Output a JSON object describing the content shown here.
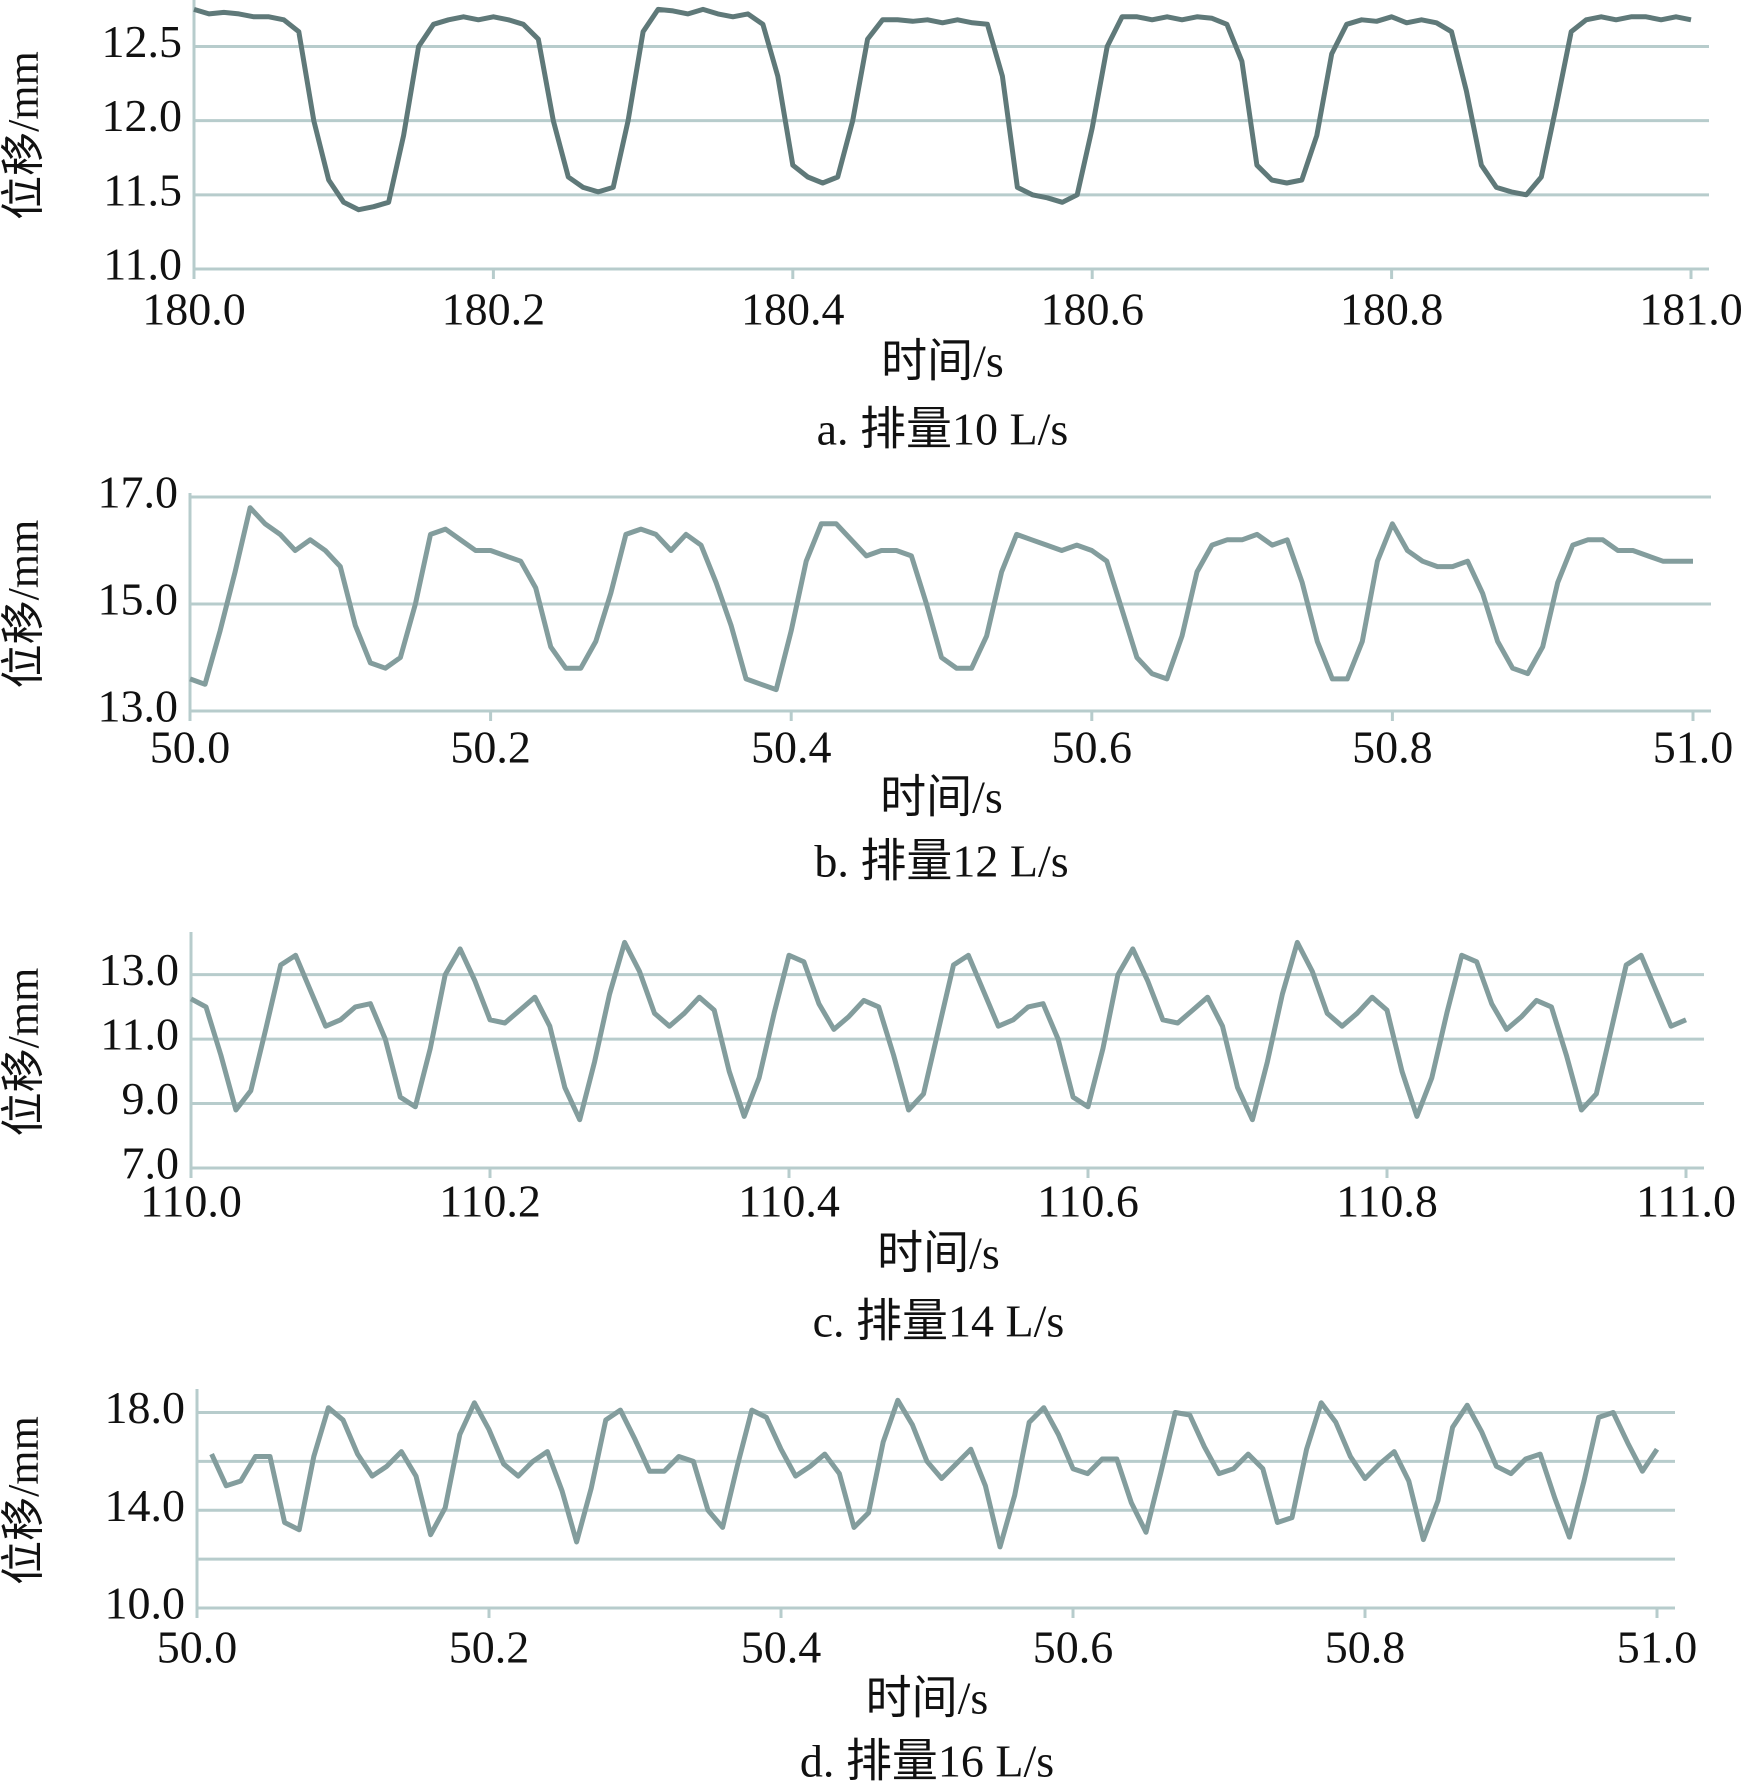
{
  "chart_data": [
    {
      "type": "line",
      "ylabel": "位移/mm",
      "xlabel": "时间/s",
      "caption": "a. 排量10 L/s",
      "x": [
        180,
        180.01,
        180.02,
        180.03,
        180.04,
        180.05,
        180.06,
        180.07,
        180.08,
        180.09,
        180.1,
        180.11,
        180.12,
        180.13,
        180.14,
        180.15,
        180.16,
        180.17,
        180.18,
        180.19,
        180.2,
        180.21,
        180.22,
        180.23,
        180.24,
        180.25,
        180.26,
        180.27,
        180.28,
        180.29,
        180.3,
        180.31,
        180.32,
        180.33,
        180.34,
        180.35,
        180.36,
        180.37,
        180.38,
        180.39,
        180.4,
        180.41,
        180.42,
        180.43,
        180.44,
        180.45,
        180.46,
        180.47,
        180.48,
        180.49,
        180.5,
        180.51,
        180.52,
        180.53,
        180.54,
        180.55,
        180.56,
        180.57,
        180.58,
        180.59,
        180.6,
        180.61,
        180.62,
        180.63,
        180.64,
        180.65,
        180.66,
        180.67,
        180.68,
        180.69,
        180.7,
        180.71,
        180.72,
        180.73,
        180.74,
        180.75,
        180.76,
        180.77,
        180.78,
        180.79,
        180.8,
        180.81,
        180.82,
        180.83,
        180.84,
        180.85,
        180.86,
        180.87,
        180.88,
        180.89,
        180.9,
        180.91,
        180.92,
        180.93,
        180.94,
        180.95,
        180.96,
        180.97,
        180.98,
        180.99,
        181
      ],
      "series": [
        {
          "color": "#5f7979",
          "values": [
            12.75,
            12.72,
            12.73,
            12.72,
            12.7,
            12.7,
            12.68,
            12.6,
            12.0,
            11.6,
            11.45,
            11.4,
            11.42,
            11.45,
            11.9,
            12.5,
            12.65,
            12.68,
            12.7,
            12.68,
            12.7,
            12.68,
            12.65,
            12.55,
            12.0,
            11.62,
            11.55,
            11.52,
            11.55,
            12.0,
            12.6,
            12.75,
            12.74,
            12.72,
            12.75,
            12.72,
            12.7,
            12.72,
            12.65,
            12.3,
            11.7,
            11.62,
            11.58,
            11.62,
            12.0,
            12.55,
            12.68,
            12.68,
            12.67,
            12.68,
            12.66,
            12.68,
            12.66,
            12.65,
            12.3,
            11.55,
            11.5,
            11.48,
            11.45,
            11.5,
            11.95,
            12.5,
            12.7,
            12.7,
            12.68,
            12.7,
            12.68,
            12.7,
            12.69,
            12.65,
            12.4,
            11.7,
            11.6,
            11.58,
            11.6,
            11.9,
            12.45,
            12.65,
            12.68,
            12.67,
            12.7,
            12.66,
            12.68,
            12.66,
            12.6,
            12.2,
            11.7,
            11.55,
            11.52,
            11.5,
            11.62,
            12.1,
            12.6,
            12.68,
            12.7,
            12.68,
            12.7,
            12.7,
            12.68,
            12.7,
            12.68
          ]
        }
      ],
      "xlim": [
        180,
        181
      ],
      "ylim": [
        11,
        12.8
      ],
      "xticks": [
        {
          "value": 180,
          "label": "180.0"
        },
        180.2,
        180.4,
        180.6,
        180.8,
        {
          "value": 181,
          "label": "181.0"
        }
      ],
      "yticks": [
        {
          "value": 11,
          "label": "11.0"
        },
        11.5,
        {
          "value": 12,
          "label": "12.0"
        },
        12.5
      ],
      "grid": true
    },
    {
      "type": "line",
      "ylabel": "位移/mm",
      "xlabel": "时间/s",
      "caption": "b. 排量12 L/s",
      "x": [
        50,
        50.01,
        50.02,
        50.03,
        50.04,
        50.05,
        50.06,
        50.07,
        50.08,
        50.09,
        50.1,
        50.11,
        50.12,
        50.13,
        50.14,
        50.15,
        50.16,
        50.17,
        50.18,
        50.19,
        50.2,
        50.21,
        50.22,
        50.23,
        50.24,
        50.25,
        50.26,
        50.27,
        50.28,
        50.29,
        50.3,
        50.31,
        50.32,
        50.33,
        50.34,
        50.35,
        50.36,
        50.37,
        50.38,
        50.39,
        50.4,
        50.41,
        50.42,
        50.43,
        50.44,
        50.45,
        50.46,
        50.47,
        50.48,
        50.49,
        50.5,
        50.51,
        50.52,
        50.53,
        50.54,
        50.55,
        50.56,
        50.57,
        50.58,
        50.59,
        50.6,
        50.61,
        50.62,
        50.63,
        50.64,
        50.65,
        50.66,
        50.67,
        50.68,
        50.69,
        50.7,
        50.71,
        50.72,
        50.73,
        50.74,
        50.75,
        50.76,
        50.77,
        50.78,
        50.79,
        50.8,
        50.81,
        50.82,
        50.83,
        50.84,
        50.85,
        50.86,
        50.87,
        50.88,
        50.89,
        50.9,
        50.91,
        50.92,
        50.93,
        50.94,
        50.95,
        50.96,
        50.97,
        50.98,
        50.99,
        51
      ],
      "series": [
        {
          "color": "#839d9d",
          "values": [
            13.6,
            13.5,
            14.5,
            15.6,
            16.8,
            16.5,
            16.3,
            16.0,
            16.2,
            16.0,
            15.7,
            14.6,
            13.9,
            13.8,
            14.0,
            15.0,
            16.3,
            16.4,
            16.2,
            16.0,
            16.0,
            15.9,
            15.8,
            15.3,
            14.2,
            13.8,
            13.8,
            14.3,
            15.2,
            16.3,
            16.4,
            16.3,
            16.0,
            16.3,
            16.1,
            15.4,
            14.6,
            13.6,
            13.5,
            13.4,
            14.5,
            15.8,
            16.5,
            16.5,
            16.2,
            15.9,
            16.0,
            16.0,
            15.9,
            15.0,
            14.0,
            13.8,
            13.8,
            14.4,
            15.6,
            16.3,
            16.2,
            16.1,
            16.0,
            16.1,
            16.0,
            15.8,
            14.9,
            14.0,
            13.7,
            13.6,
            14.4,
            15.6,
            16.1,
            16.2,
            16.2,
            16.3,
            16.1,
            16.2,
            15.4,
            14.3,
            13.6,
            13.6,
            14.3,
            15.8,
            16.5,
            16.0,
            15.8,
            15.7,
            15.7,
            15.8,
            15.2,
            14.3,
            13.8,
            13.7,
            14.2,
            15.4,
            16.1,
            16.2,
            16.2,
            16.0,
            16.0,
            15.9,
            15.8,
            15.8,
            15.8
          ]
        }
      ],
      "xlim": [
        50,
        51
      ],
      "ylim": [
        13,
        17
      ],
      "xticks": [
        {
          "value": 50,
          "label": "50.0"
        },
        50.2,
        50.4,
        50.6,
        50.8,
        {
          "value": 51,
          "label": "51.0"
        }
      ],
      "yticks": [
        {
          "value": 13,
          "label": "13.0"
        },
        {
          "value": 15,
          "label": "15.0"
        },
        {
          "value": 17,
          "label": "17.0"
        }
      ],
      "grid": true
    },
    {
      "type": "line",
      "ylabel": "位移/mm",
      "xlabel": "时间/s",
      "caption": "c. 排量14 L/s",
      "x": [
        110,
        110.01,
        110.02,
        110.03,
        110.04,
        110.05,
        110.06,
        110.07,
        110.08,
        110.09,
        110.1,
        110.11,
        110.12,
        110.13,
        110.14,
        110.15,
        110.16,
        110.17,
        110.18,
        110.19,
        110.2,
        110.21,
        110.22,
        110.23,
        110.24,
        110.25,
        110.26,
        110.27,
        110.28,
        110.29,
        110.3,
        110.31,
        110.32,
        110.33,
        110.34,
        110.35,
        110.36,
        110.37,
        110.38,
        110.39,
        110.4,
        110.41,
        110.42,
        110.43,
        110.44,
        110.45,
        110.46,
        110.47,
        110.48,
        110.49,
        110.5,
        110.51,
        110.52,
        110.53,
        110.54,
        110.55,
        110.56,
        110.57,
        110.58,
        110.59,
        110.6,
        110.61,
        110.62,
        110.63,
        110.64,
        110.65,
        110.66,
        110.67,
        110.68,
        110.69,
        110.7,
        110.71,
        110.72,
        110.73,
        110.74,
        110.75,
        110.76,
        110.77,
        110.78,
        110.79,
        110.8,
        110.81,
        110.82,
        110.83,
        110.84,
        110.85,
        110.86,
        110.87,
        110.88,
        110.89,
        110.9,
        110.91,
        110.92,
        110.93,
        110.94,
        110.95,
        110.96,
        110.97,
        110.98,
        110.99,
        111
      ],
      "series": [
        {
          "color": "#839d9d",
          "values": [
            12.25,
            12.0,
            10.5,
            8.8,
            9.4,
            11.3,
            13.3,
            13.6,
            12.5,
            11.4,
            11.6,
            12.0,
            12.1,
            11.0,
            9.2,
            8.9,
            10.7,
            13.0,
            13.8,
            12.8,
            11.6,
            11.5,
            11.9,
            12.3,
            11.4,
            9.5,
            8.5,
            10.3,
            12.4,
            14.0,
            13.1,
            11.8,
            11.4,
            11.8,
            12.3,
            11.9,
            10.0,
            8.6,
            9.8,
            11.8,
            13.6,
            13.4,
            12.1,
            11.3,
            11.7,
            12.2,
            12.0,
            10.5,
            8.8,
            9.3,
            11.3,
            13.3,
            13.6,
            12.5,
            11.4,
            11.6,
            12.0,
            12.1,
            11.0,
            9.2,
            8.9,
            10.7,
            13.0,
            13.8,
            12.8,
            11.6,
            11.5,
            11.9,
            12.3,
            11.4,
            9.5,
            8.5,
            10.3,
            12.4,
            14.0,
            13.1,
            11.8,
            11.4,
            11.8,
            12.3,
            11.9,
            10.0,
            8.6,
            9.8,
            11.8,
            13.6,
            13.4,
            12.1,
            11.3,
            11.7,
            12.2,
            12.0,
            10.5,
            8.8,
            9.3,
            11.3,
            13.3,
            13.6,
            12.5,
            11.4,
            11.6
          ]
        }
      ],
      "xlim": [
        110,
        111
      ],
      "ylim": [
        7,
        14.2
      ],
      "xticks": [
        {
          "value": 110,
          "label": "110.0"
        },
        110.2,
        110.4,
        110.6,
        110.8,
        {
          "value": 111,
          "label": "111.0"
        }
      ],
      "yticks": [
        {
          "value": 7,
          "label": "7.0"
        },
        {
          "value": 9,
          "label": "9.0"
        },
        {
          "value": 11,
          "label": "11.0"
        },
        {
          "value": 13,
          "label": "13.0"
        }
      ],
      "grid": true
    },
    {
      "type": "line",
      "ylabel": "位移/mm",
      "xlabel": "时间/s",
      "caption": "d. 排量16 L/s",
      "x": [
        50,
        50.01,
        50.02,
        50.03,
        50.04,
        50.05,
        50.06,
        50.07,
        50.08,
        50.09,
        50.1,
        50.11,
        50.12,
        50.13,
        50.14,
        50.15,
        50.16,
        50.17,
        50.18,
        50.19,
        50.2,
        50.21,
        50.22,
        50.23,
        50.24,
        50.25,
        50.26,
        50.27,
        50.28,
        50.29,
        50.3,
        50.31,
        50.32,
        50.33,
        50.34,
        50.35,
        50.36,
        50.37,
        50.38,
        50.39,
        50.4,
        50.41,
        50.42,
        50.43,
        50.44,
        50.45,
        50.46,
        50.47,
        50.48,
        50.49,
        50.5,
        50.51,
        50.52,
        50.53,
        50.54,
        50.55,
        50.56,
        50.57,
        50.58,
        50.59,
        50.6,
        50.61,
        50.62,
        50.63,
        50.64,
        50.65,
        50.66,
        50.67,
        50.68,
        50.69,
        50.7,
        50.71,
        50.72,
        50.73,
        50.74,
        50.75,
        50.76,
        50.77,
        50.78,
        50.79,
        50.8,
        50.81,
        50.82,
        50.83,
        50.84,
        50.85,
        50.86,
        50.87,
        50.88,
        50.89,
        50.9,
        50.91,
        50.92,
        50.93,
        50.94,
        50.95,
        50.96,
        50.97,
        50.98,
        50.99,
        51
      ],
      "series": [
        {
          "color": "#839d9d",
          "values": [
            null,
            16.3,
            15.0,
            15.2,
            16.2,
            16.2,
            13.5,
            13.2,
            16.2,
            18.2,
            17.7,
            16.3,
            15.4,
            15.8,
            16.4,
            15.4,
            13.0,
            14.1,
            17.1,
            18.4,
            17.3,
            15.9,
            15.4,
            16.0,
            16.4,
            14.8,
            12.7,
            14.9,
            17.7,
            18.1,
            16.9,
            15.6,
            15.6,
            16.2,
            16.0,
            14.0,
            13.3,
            15.8,
            18.1,
            17.8,
            16.5,
            15.4,
            15.8,
            16.3,
            15.5,
            13.3,
            13.9,
            16.8,
            18.5,
            17.5,
            16.0,
            15.3,
            15.9,
            16.5,
            15.0,
            12.5,
            14.6,
            17.6,
            18.2,
            17.1,
            15.7,
            15.5,
            16.1,
            16.1,
            14.3,
            13.1,
            15.5,
            18.0,
            17.9,
            16.6,
            15.5,
            15.7,
            16.3,
            15.7,
            13.5,
            13.7,
            16.5,
            18.4,
            17.6,
            16.2,
            15.3,
            15.9,
            16.4,
            15.2,
            12.8,
            14.4,
            17.4,
            18.3,
            17.2,
            15.8,
            15.5,
            16.1,
            16.3,
            14.5,
            12.9,
            15.2,
            17.8,
            18.0,
            16.75,
            15.6,
            16.5
          ]
        }
      ],
      "xlim": [
        50,
        51
      ],
      "ylim": [
        10,
        18.8
      ],
      "xticks": [
        {
          "value": 50,
          "label": "50.0"
        },
        50.2,
        50.4,
        50.6,
        50.8,
        {
          "value": 51,
          "label": "51.0"
        }
      ],
      "yticks": [
        {
          "value": 10,
          "label": "10.0"
        },
        {
          "value": 14,
          "label": "14.0"
        },
        {
          "value": 18,
          "label": "18.0"
        }
      ],
      "y_minor_grid": [
        12,
        16
      ],
      "grid": true
    }
  ]
}
